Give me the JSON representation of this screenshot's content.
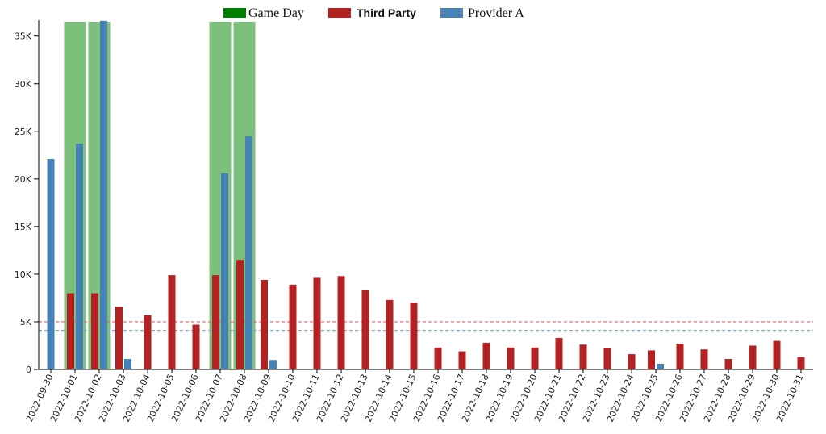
{
  "chart_data": {
    "type": "bar",
    "title": "",
    "xlabel": "",
    "ylabel": "",
    "ylim": [
      0,
      36500
    ],
    "y_ticks": [
      0,
      5000,
      10000,
      15000,
      20000,
      25000,
      30000,
      35000
    ],
    "y_tick_labels": [
      "0",
      "5K",
      "10K",
      "15K",
      "20K",
      "25K",
      "30K",
      "35K"
    ],
    "categories": [
      "2022-09-30",
      "2022-10-01",
      "2022-10-02",
      "2022-10-03",
      "2022-10-04",
      "2022-10-05",
      "2022-10-06",
      "2022-10-07",
      "2022-10-08",
      "2022-10-09",
      "2022-10-10",
      "2022-10-11",
      "2022-10-12",
      "2022-10-13",
      "2022-10-14",
      "2022-10-15",
      "2022-10-16",
      "2022-10-17",
      "2022-10-18",
      "2022-10-19",
      "2022-10-20",
      "2022-10-21",
      "2022-10-22",
      "2022-10-23",
      "2022-10-24",
      "2022-10-25",
      "2022-10-26",
      "2022-10-27",
      "2022-10-28",
      "2022-10-29",
      "2022-10-30",
      "2022-10-31"
    ],
    "game_days": [
      "2022-10-01",
      "2022-10-02",
      "2022-10-07",
      "2022-10-08"
    ],
    "series": [
      {
        "name": "Third Party",
        "color": "#b22222",
        "values": [
          0,
          8000,
          8000,
          6600,
          5700,
          9900,
          4700,
          9900,
          11500,
          9400,
          8900,
          9700,
          9800,
          8300,
          7300,
          7000,
          2300,
          1900,
          2800,
          2300,
          2300,
          3300,
          2600,
          2200,
          1600,
          2000,
          2700,
          2100,
          1100,
          2500,
          3000,
          1300
        ]
      },
      {
        "name": "Provider A",
        "color": "#4682b4",
        "values": [
          22100,
          23700,
          36600,
          1100,
          0,
          0,
          0,
          20600,
          24500,
          1000,
          0,
          0,
          0,
          0,
          0,
          0,
          0,
          0,
          0,
          0,
          0,
          0,
          0,
          0,
          0,
          600,
          0,
          0,
          0,
          0,
          0,
          0
        ]
      }
    ],
    "legend": {
      "placement": "top-center",
      "items": [
        {
          "name": "Game Day",
          "color": "#008000"
        },
        {
          "name": "Third Party",
          "color": "#b22222"
        },
        {
          "name": "Provider A",
          "color": "#4682b4"
        }
      ]
    },
    "reference_lines": [
      {
        "series": "Third Party",
        "value": 5000,
        "color": "#e06666"
      },
      {
        "series": "Provider A",
        "value": 4100,
        "color": "#7fa7cf"
      }
    ],
    "game_day_color": "#7cc07c",
    "grid": false
  }
}
